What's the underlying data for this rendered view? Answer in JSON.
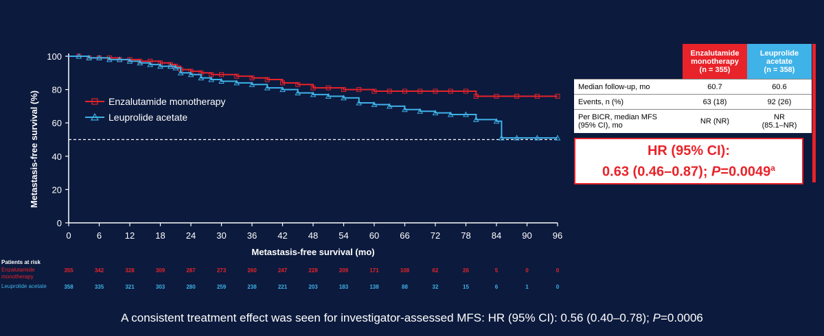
{
  "chart_data": {
    "type": "line",
    "title": "",
    "xlabel": "Metastasis-free survival (mo)",
    "ylabel": "Metastasis-free survival (%)",
    "xlim": [
      0,
      96
    ],
    "ylim": [
      0,
      100
    ],
    "xticks": [
      0,
      6,
      12,
      18,
      24,
      30,
      36,
      42,
      48,
      54,
      60,
      66,
      72,
      78,
      84,
      90,
      96
    ],
    "yticks": [
      0,
      20,
      40,
      60,
      80,
      100
    ],
    "reference_line": 50,
    "legend_position": "upper-left",
    "grid": false,
    "series": [
      {
        "name": "Enzalutamide monotherapy",
        "color": "#e8232a",
        "x": [
          0,
          2,
          4,
          6,
          8,
          10,
          12,
          14,
          16,
          18,
          20,
          21,
          22,
          24,
          26,
          28,
          30,
          33,
          36,
          39,
          42,
          45,
          48,
          51,
          54,
          57,
          60,
          63,
          66,
          69,
          72,
          75,
          78,
          80,
          84,
          88,
          92,
          96
        ],
        "y": [
          100,
          100,
          99,
          99,
          99,
          98,
          98,
          97,
          97,
          96,
          95,
          94,
          92,
          91,
          90,
          89,
          89,
          88,
          87,
          86,
          84,
          83,
          81,
          81,
          80,
          80,
          79,
          79,
          79,
          79,
          79,
          79,
          79,
          76,
          76,
          76,
          76,
          76
        ]
      },
      {
        "name": "Leuprolide acetate",
        "color": "#3fb2e8",
        "x": [
          0,
          2,
          4,
          6,
          8,
          10,
          12,
          14,
          16,
          18,
          20,
          21,
          22,
          24,
          26,
          28,
          30,
          33,
          36,
          39,
          42,
          45,
          48,
          51,
          54,
          57,
          60,
          63,
          66,
          69,
          72,
          75,
          78,
          80,
          84,
          85,
          88,
          92,
          96
        ],
        "y": [
          100,
          100,
          99,
          99,
          98,
          98,
          97,
          96,
          95,
          94,
          94,
          93,
          90,
          89,
          87,
          86,
          85,
          84,
          83,
          81,
          80,
          78,
          77,
          76,
          75,
          72,
          71,
          70,
          68,
          67,
          66,
          65,
          65,
          62,
          61,
          51,
          51,
          51,
          51
        ]
      }
    ]
  },
  "risk_table": {
    "title": "Patients at risk",
    "rows": [
      {
        "label": "Enzalutamide monotherapy",
        "color": "#e8232a",
        "values": [
          "355",
          "342",
          "328",
          "309",
          "287",
          "273",
          "260",
          "247",
          "228",
          "209",
          "171",
          "108",
          "62",
          "26",
          "5",
          "0",
          "0"
        ]
      },
      {
        "label": "Leuprolide acetate",
        "color": "#3fb2e8",
        "values": [
          "358",
          "335",
          "321",
          "303",
          "280",
          "259",
          "238",
          "221",
          "203",
          "183",
          "138",
          "88",
          "32",
          "15",
          "6",
          "1",
          "0"
        ]
      }
    ]
  },
  "summary_table": {
    "col_enz": {
      "line1": "Enzalutamide",
      "line2": "monotherapy",
      "line3": "(n = 355)"
    },
    "col_leu": {
      "line1": "Leuprolide",
      "line2": "acetate",
      "line3": "(n = 358)"
    },
    "rows": [
      {
        "label": "Median follow-up, mo",
        "enz": "60.7",
        "leu": "60.6"
      },
      {
        "label": "Events, n (%)",
        "enz": "63 (18)",
        "leu": "92 (26)"
      },
      {
        "label_line1": "Per BICR, median MFS",
        "label_line2": "(95% CI), mo",
        "enz": "NR (NR)",
        "leu_line1": "NR",
        "leu_line2": "(85.1–NR)"
      }
    ]
  },
  "hazard_ratio": {
    "line1": "HR (95% CI):",
    "value": "0.63 (0.46–0.87); ",
    "p_label": "P",
    "p_value": "=0.0049",
    "superscript": "a"
  },
  "footnote": {
    "prefix": "A consistent treatment effect was seen for investigator-assessed MFS: HR (95% CI): 0.56 (0.40–0.78); ",
    "p_label": "P",
    "p_value": "=0.0006"
  }
}
